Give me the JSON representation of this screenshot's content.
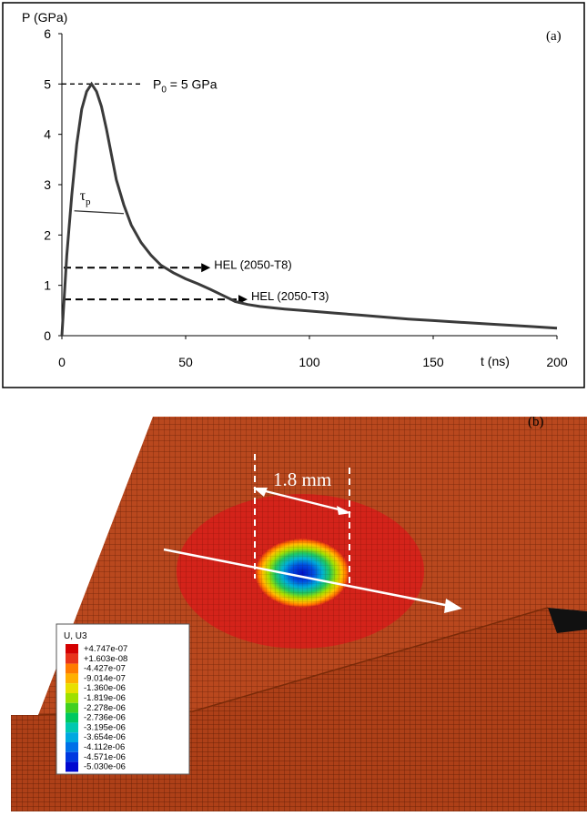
{
  "figure": {
    "panel_a_label": "(a)",
    "panel_b_label": "(b)"
  },
  "chart_data": {
    "type": "line",
    "ylabel": "P (GPa)",
    "xlabel": "t (ns)",
    "xlim": [
      0,
      200
    ],
    "ylim": [
      0,
      6
    ],
    "xticks": [
      0,
      50,
      100,
      150,
      200
    ],
    "yticks": [
      0,
      1,
      2,
      3,
      4,
      5,
      6
    ],
    "grid": false,
    "series": [
      {
        "x": [
          0,
          2,
          4,
          6,
          8,
          10,
          12,
          14,
          16,
          18,
          20,
          22,
          25,
          28,
          32,
          36,
          40,
          45,
          50,
          55,
          60,
          65,
          70,
          75,
          80,
          90,
          100,
          110,
          120,
          130,
          140,
          150,
          160,
          170,
          180,
          190,
          200
        ],
        "y": [
          0,
          1.6,
          2.8,
          3.8,
          4.5,
          4.85,
          5.0,
          4.85,
          4.55,
          4.1,
          3.6,
          3.1,
          2.6,
          2.2,
          1.85,
          1.6,
          1.4,
          1.25,
          1.13,
          1.03,
          0.92,
          0.8,
          0.68,
          0.62,
          0.58,
          0.53,
          0.49,
          0.45,
          0.41,
          0.37,
          0.33,
          0.3,
          0.27,
          0.24,
          0.21,
          0.18,
          0.15
        ]
      }
    ],
    "annotations": {
      "p0_text": "P",
      "p0_sub": "0",
      "p0_rest": " = 5 GPa",
      "p0_value": 5,
      "tau_text": "τ",
      "tau_sub": "p",
      "tau_line": {
        "x": [
          5,
          25
        ],
        "y": 2.48
      },
      "hel_t8": {
        "text": "HEL (2050-T8)",
        "y": 1.35,
        "x_end": 60
      },
      "hel_t3": {
        "text": "HEL (2050-T3)",
        "y": 0.72,
        "x_end": 75
      }
    }
  },
  "simulation": {
    "dimension_label": "1.8 mm",
    "legend": {
      "title": "U, U3",
      "entries": [
        "+4.747e-07",
        "+1.603e-08",
        "-4.427e-07",
        "-9.014e-07",
        "-1.360e-06",
        "-1.819e-06",
        "-2.278e-06",
        "-2.736e-06",
        "-3.195e-06",
        "-3.654e-06",
        "-4.112e-06",
        "-4.571e-06",
        "-5.030e-06"
      ],
      "colors": [
        "#d40000",
        "#e8331a",
        "#ff7b00",
        "#ffb000",
        "#e8e000",
        "#9ee000",
        "#40d020",
        "#00c860",
        "#00c8b0",
        "#00a8e0",
        "#0070e8",
        "#0038e0",
        "#0008d0"
      ]
    },
    "mesh_color": "#b8461c",
    "zone_color": "#d8201a"
  }
}
